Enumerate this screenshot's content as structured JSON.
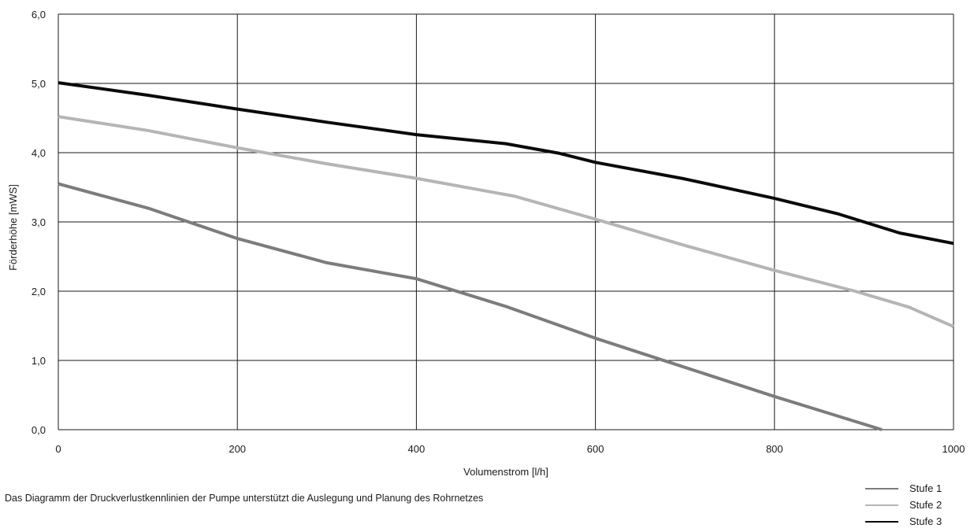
{
  "chart_data": {
    "type": "line",
    "title": "",
    "xlabel": "Volumenstrom [l/h]",
    "ylabel": "Förderhöhe [mWS]",
    "xlim": [
      0,
      1000
    ],
    "ylim": [
      0,
      6
    ],
    "x_ticks": [
      0,
      200,
      400,
      600,
      800,
      1000
    ],
    "x_tick_labels": [
      "0",
      "200",
      "400",
      "600",
      "800",
      "1000"
    ],
    "y_ticks": [
      0,
      1,
      2,
      3,
      4,
      5,
      6
    ],
    "y_tick_labels": [
      "0,0",
      "1,0",
      "2,0",
      "3,0",
      "4,0",
      "5,0",
      "6,0"
    ],
    "grid": true,
    "legend_position": "bottom-right",
    "series": [
      {
        "name": "Stufe 1",
        "color": "#7c7c7c",
        "points": [
          [
            0,
            3.55
          ],
          [
            100,
            3.2
          ],
          [
            200,
            2.76
          ],
          [
            300,
            2.41
          ],
          [
            400,
            2.18
          ],
          [
            500,
            1.78
          ],
          [
            600,
            1.32
          ],
          [
            700,
            0.9
          ],
          [
            800,
            0.48
          ],
          [
            920,
            0.0
          ]
        ]
      },
      {
        "name": "Stufe 2",
        "color": "#b5b5b5",
        "points": [
          [
            0,
            4.52
          ],
          [
            100,
            4.32
          ],
          [
            200,
            4.07
          ],
          [
            300,
            3.84
          ],
          [
            400,
            3.63
          ],
          [
            510,
            3.37
          ],
          [
            600,
            3.04
          ],
          [
            700,
            2.66
          ],
          [
            800,
            2.3
          ],
          [
            890,
            2.0
          ],
          [
            950,
            1.77
          ],
          [
            1000,
            1.49
          ]
        ]
      },
      {
        "name": "Stufe 3",
        "color": "#0a0a0a",
        "points": [
          [
            0,
            5.01
          ],
          [
            100,
            4.83
          ],
          [
            200,
            4.63
          ],
          [
            300,
            4.44
          ],
          [
            400,
            4.26
          ],
          [
            500,
            4.13
          ],
          [
            560,
            3.99
          ],
          [
            600,
            3.86
          ],
          [
            700,
            3.62
          ],
          [
            800,
            3.34
          ],
          [
            870,
            3.12
          ],
          [
            940,
            2.84
          ],
          [
            1000,
            2.69
          ]
        ]
      }
    ]
  },
  "caption": "Das Diagramm der Druckverlustkennlinien der Pumpe unterstützt die Auslegung und Planung des Rohrnetzes"
}
